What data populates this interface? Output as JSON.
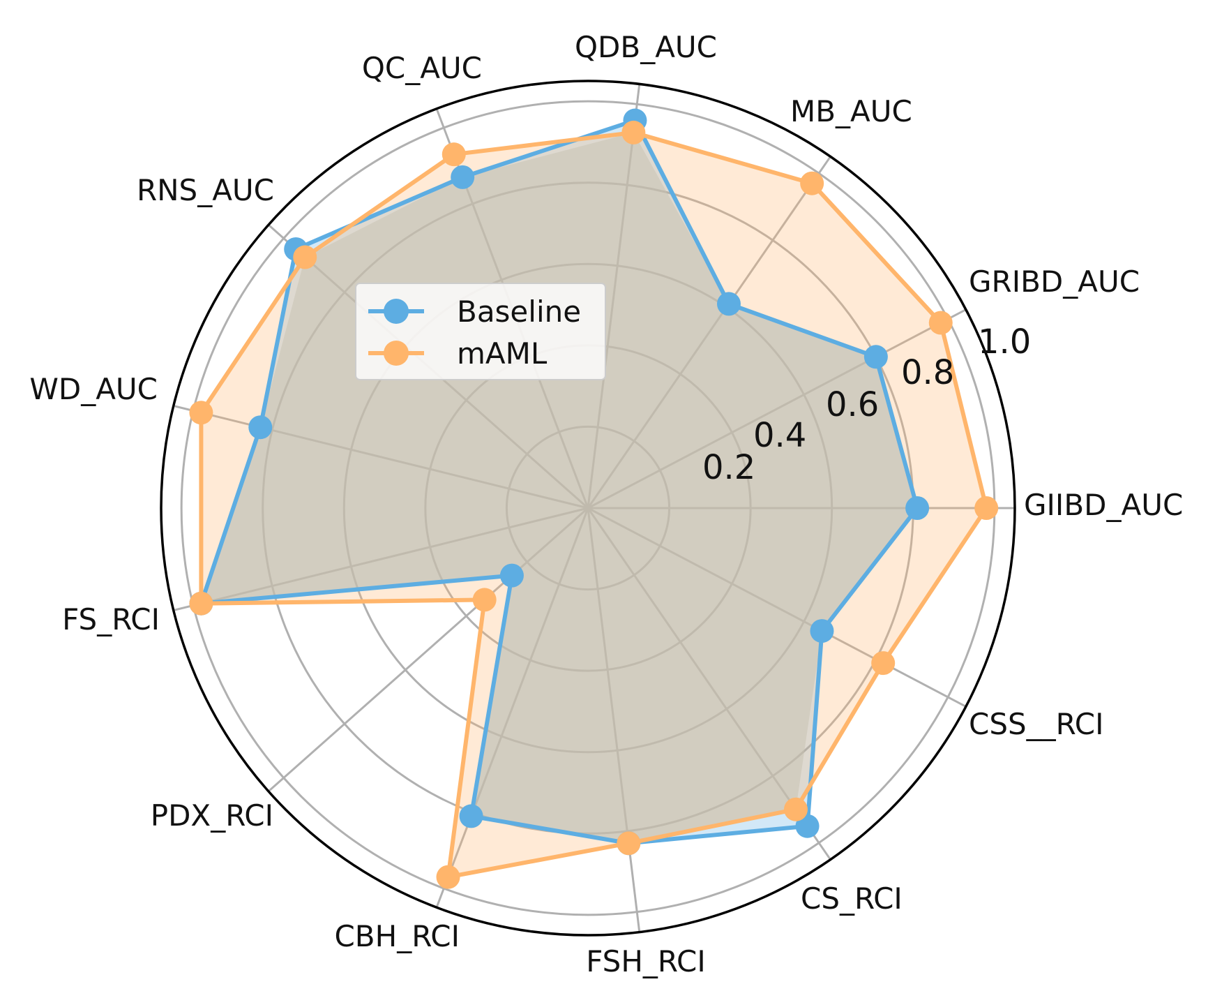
{
  "chart_data": {
    "type": "radar",
    "categories": [
      "GIIBD_AUC",
      "GRIBD_AUC",
      "MB_AUC",
      "QDB_AUC",
      "QC_AUC",
      "RNS_AUC",
      "WD_AUC",
      "FS_RCI",
      "PDX_RCI",
      "CBH_RCI",
      "FSH_RCI",
      "CS_RCI",
      "CSS__RCI"
    ],
    "series": [
      {
        "name": "Baseline",
        "values": [
          0.81,
          0.8,
          0.61,
          0.96,
          0.87,
          0.96,
          0.83,
          0.98,
          0.25,
          0.81,
          0.83,
          0.95,
          0.65
        ],
        "color": "#5dade2"
      },
      {
        "name": "mAML",
        "values": [
          0.98,
          0.98,
          0.97,
          0.93,
          0.93,
          0.93,
          0.98,
          0.98,
          0.34,
          0.97,
          0.83,
          0.9,
          0.82
        ],
        "color": "#ffb56b"
      }
    ],
    "radial_ticks": [
      "0.2",
      "0.4",
      "0.6",
      "0.8",
      "1.0"
    ],
    "rlim": [
      0,
      1.05
    ],
    "grid": true,
    "legend": "upper-left"
  }
}
